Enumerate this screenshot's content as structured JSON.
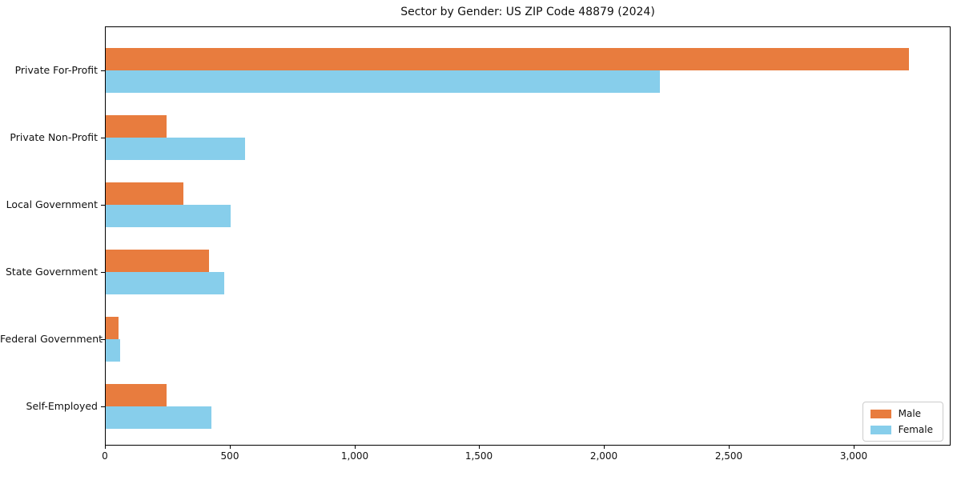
{
  "chart_data": {
    "type": "bar",
    "orientation": "horizontal",
    "title": "Sector by Gender: US ZIP Code 48879 (2024)",
    "xlabel": "",
    "ylabel": "",
    "categories": [
      "Private For-Profit",
      "Private Non-Profit",
      "Local Government",
      "State Government",
      "Federal Government",
      "Self-Employed"
    ],
    "series": [
      {
        "name": "Male",
        "color": "#e87c3e",
        "values": [
          3225,
          244,
          311,
          414,
          50,
          243
        ]
      },
      {
        "name": "Female",
        "color": "#87ceeb",
        "values": [
          2225,
          559,
          501,
          476,
          57,
          423
        ]
      }
    ],
    "xlim": [
      0,
      3390
    ],
    "x_ticks": [
      0,
      500,
      1000,
      1500,
      2000,
      2500,
      3000
    ],
    "x_tick_labels": [
      "0",
      "500",
      "1,000",
      "1,500",
      "2,000",
      "2,500",
      "3,000"
    ],
    "grid": false,
    "legend": {
      "position": "lower right",
      "entries": [
        "Male",
        "Female"
      ]
    }
  }
}
